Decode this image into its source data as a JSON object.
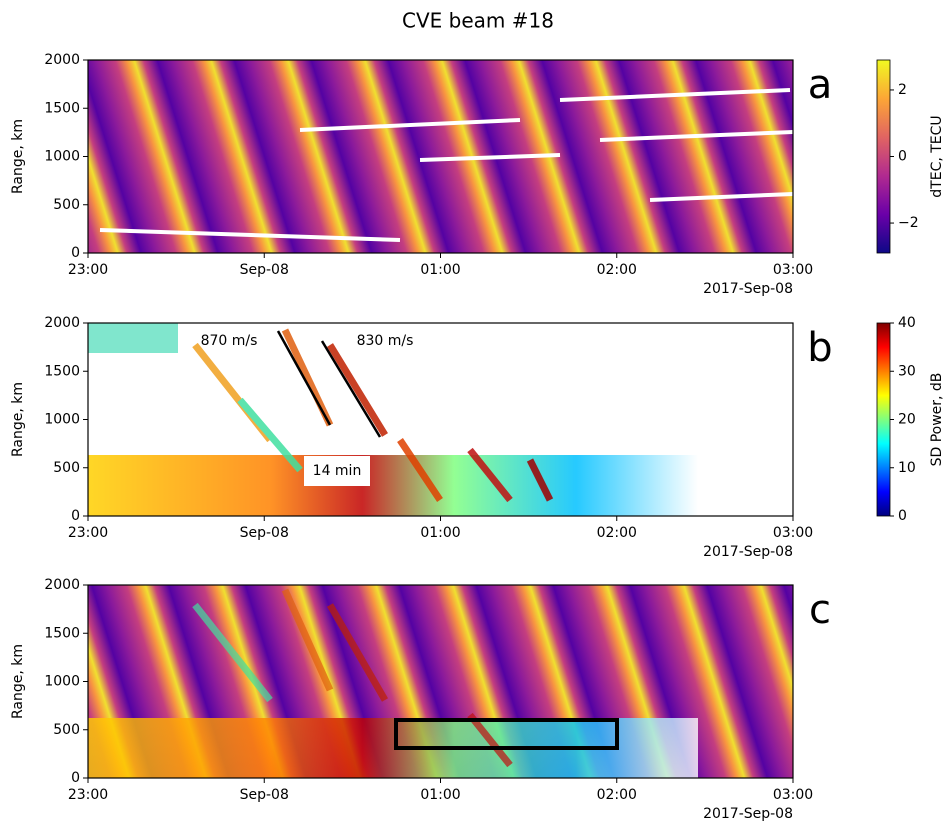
{
  "title": "CVE beam #18",
  "chart_data": [
    {
      "type": "heatmap",
      "panel_label": "a",
      "ylabel": "Range, km",
      "x_tick_labels": [
        "23:00",
        "Sep-08",
        "01:00",
        "02:00",
        "03:00"
      ],
      "x_sublabel": "2017-Sep-08",
      "ylim": [
        0,
        2000
      ],
      "yticks": [
        0,
        500,
        1000,
        1500,
        2000
      ],
      "colorbar": {
        "label": "dTEC, TECU",
        "lim": [
          -2.9,
          2.9
        ],
        "ticks": [
          {
            "value": -2,
            "label": "−2"
          },
          0,
          2
        ],
        "colors": [
          "#0d0887",
          "#6a00a8",
          "#b12a90",
          "#e16462",
          "#fca636",
          "#f0f921"
        ]
      }
    },
    {
      "type": "heatmap",
      "panel_label": "b",
      "ylabel": "Range, km",
      "x_tick_labels": [
        "23:00",
        "Sep-08",
        "01:00",
        "02:00",
        "03:00"
      ],
      "x_sublabel": "2017-Sep-08",
      "ylim": [
        0,
        2000
      ],
      "yticks": [
        0,
        500,
        1000,
        1500,
        2000
      ],
      "annotations": [
        "870 m/s",
        "830 m/s",
        "14 min"
      ],
      "colorbar": {
        "label": "SD Power, dB",
        "lim": [
          0,
          40
        ],
        "ticks": [
          0,
          10,
          20,
          30,
          40
        ],
        "colors": [
          "#00007f",
          "#0000ff",
          "#007fff",
          "#00ffff",
          "#7fff7f",
          "#ffff00",
          "#ff7f00",
          "#ff0000",
          "#7f0000"
        ]
      }
    },
    {
      "type": "heatmap",
      "panel_label": "c",
      "ylabel": "Range, km",
      "x_tick_labels": [
        "23:00",
        "Sep-08",
        "01:00",
        "02:00",
        "03:00"
      ],
      "x_sublabel": "2017-Sep-08",
      "ylim": [
        0,
        2000
      ],
      "yticks": [
        0,
        500,
        1000,
        1500,
        2000
      ]
    }
  ]
}
